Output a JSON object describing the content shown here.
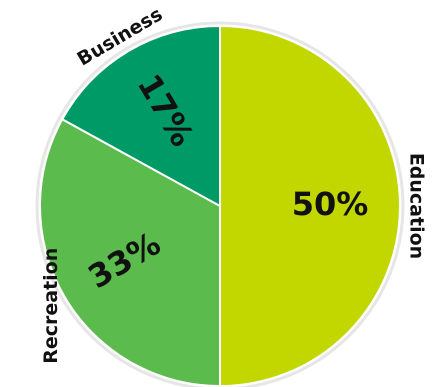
{
  "chart_data": {
    "type": "pie",
    "categories": [
      "Education",
      "Recreation",
      "Business"
    ],
    "values": [
      50,
      33,
      17
    ],
    "value_labels": [
      "50%",
      "33%",
      "17%"
    ],
    "colors": [
      "#c2d600",
      "#5bbb4c",
      "#009a66"
    ],
    "title": "",
    "legend": "none"
  }
}
